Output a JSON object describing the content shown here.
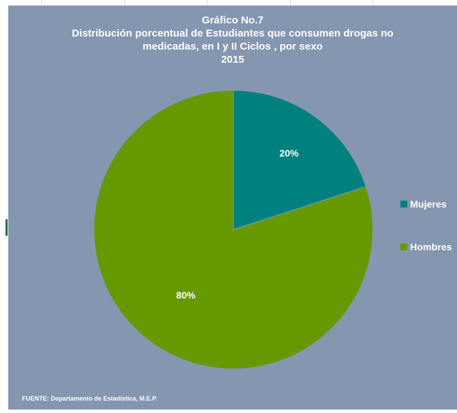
{
  "chart_data": {
    "type": "pie",
    "title_lines": [
      "Gráfico No.7",
      "Distribución porcentual de Estudiantes que consumen drogas no",
      "medicadas, en  I y II Ciclos , por sexo",
      "2015"
    ],
    "slices": [
      {
        "label": "Mujeres",
        "value": 20,
        "data_label": "20%",
        "color": "#00807f"
      },
      {
        "label": "Hombres",
        "value": 80,
        "data_label": "80%",
        "color": "#669900"
      }
    ],
    "legend_position": "right",
    "source": "FUENTE: Departamento de Estadística, M.E.P."
  },
  "colors": {
    "chart_background": "#8496b0",
    "text": "#ffffff"
  }
}
